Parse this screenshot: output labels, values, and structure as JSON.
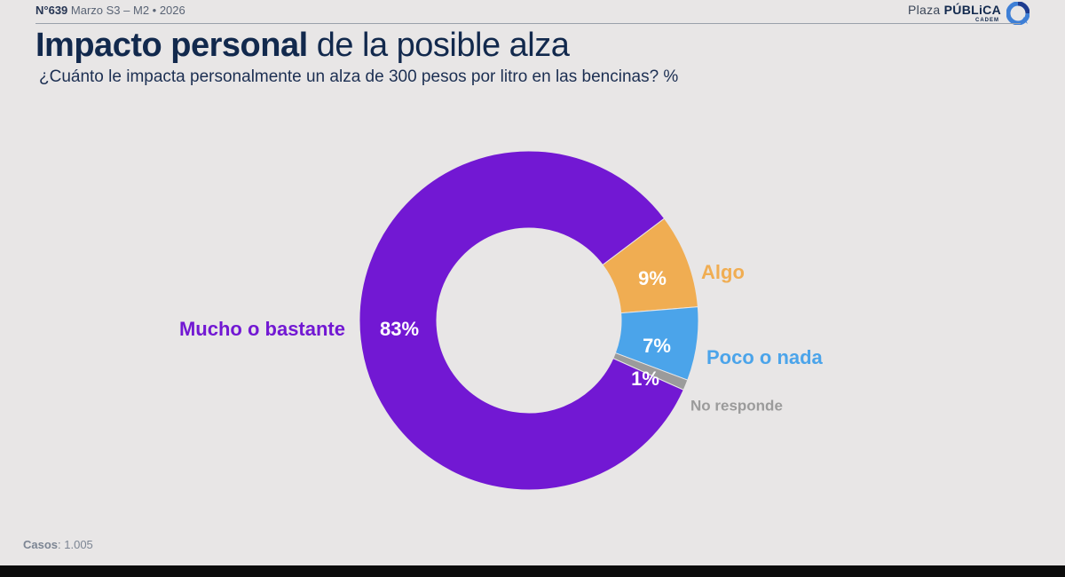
{
  "header": {
    "edition_number": "N°639",
    "edition_date": "Marzo S3 – M2 • 2026",
    "brand_light": "Plaza ",
    "brand_bold": "PÚBLiCA",
    "brand_sub": "CADEM"
  },
  "title": {
    "bold": "Impacto personal",
    "regular": " de la posible alza"
  },
  "subtitle": "¿Cuánto le impacta personalmente un alza de 300 pesos por litro en las bencinas? %",
  "chart_data": {
    "type": "pie",
    "style": "donut",
    "title": "Impacto personal de la posible alza",
    "subtitle": "¿Cuánto le impacta personalmente un alza de 300 pesos por litro en las bencinas? %",
    "unit": "%",
    "slices": [
      {
        "label": "Algo",
        "value": 9,
        "value_label": "9%",
        "color": "#f0ad52"
      },
      {
        "label": "Poco o nada",
        "value": 7,
        "value_label": "7%",
        "color": "#4ba4ea"
      },
      {
        "label": "No responde",
        "value": 1,
        "value_label": "1%",
        "color": "#9b9b9b"
      },
      {
        "label": "Mucho o bastante",
        "value": 83,
        "value_label": "83%",
        "color": "#7218d3"
      }
    ]
  },
  "footer": {
    "label": "Casos",
    "value": ": 1.005"
  },
  "colors": {
    "background": "#e8e6e6",
    "title": "#12294d",
    "label_text_inside": "#ffffff",
    "no_responde_label": "#9b9b9b"
  }
}
